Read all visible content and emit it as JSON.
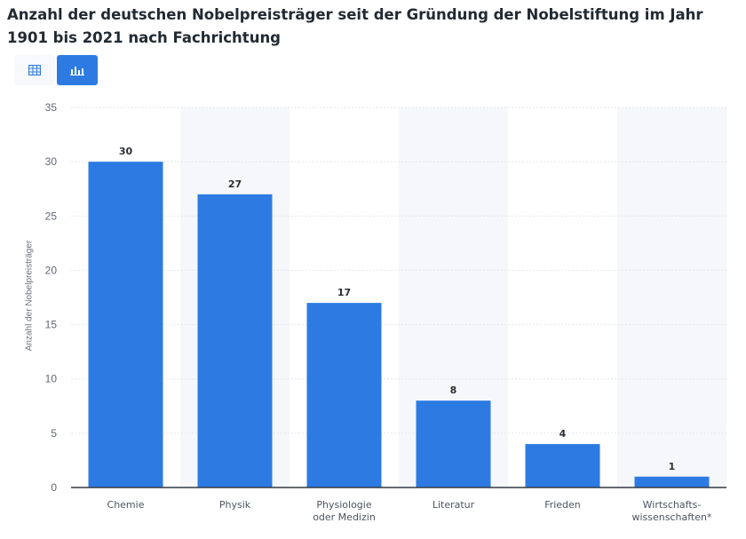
{
  "title": "Anzahl der deutschen Nobelpreisträger seit der Gründung der Nobelstiftung im Jahr 1901 bis 2021 nach Fachrichtung",
  "toolbar": {
    "table_view_icon": "table-icon",
    "chart_view_icon": "bar-chart-icon",
    "active_view": "chart",
    "active_color": "#2d7be2"
  },
  "chart_data": {
    "type": "bar",
    "title": "Anzahl der deutschen Nobelpreisträger seit der Gründung der Nobelstiftung im Jahr 1901 bis 2021 nach Fachrichtung",
    "xlabel": "",
    "ylabel": "Anzahl der Nobelpreisträger",
    "ylim": [
      0,
      35
    ],
    "yticks": [
      0,
      5,
      10,
      15,
      20,
      25,
      30,
      35
    ],
    "categories": [
      "Chemie",
      "Physik",
      "Physiologie oder Medizin",
      "Literatur",
      "Frieden",
      "Wirtschafts-wissenschaften*"
    ],
    "category_lines": [
      [
        "Chemie"
      ],
      [
        "Physik"
      ],
      [
        "Physiologie",
        "oder Medizin"
      ],
      [
        "Literatur"
      ],
      [
        "Frieden"
      ],
      [
        "Wirtschafts-",
        "wissenschaften*"
      ]
    ],
    "values": [
      30,
      27,
      17,
      8,
      4,
      1
    ],
    "bar_color": "#2d7be2",
    "grid": true,
    "legend": "none"
  }
}
